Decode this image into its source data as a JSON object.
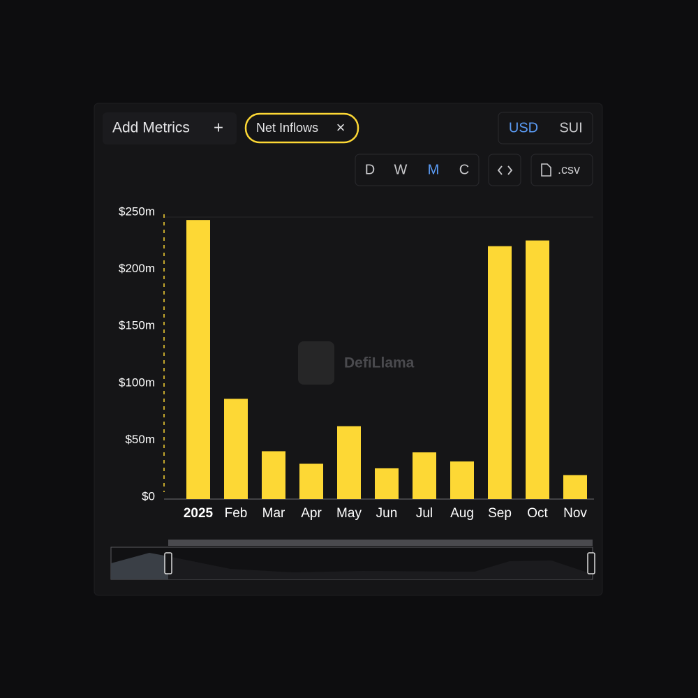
{
  "controls": {
    "add_metrics": "Add Metrics",
    "add_icon": "+",
    "metric_chip": "Net Inflows",
    "chip_close": "×",
    "currency": [
      "USD",
      "SUI"
    ],
    "currency_active": "USD",
    "periods": [
      "D",
      "W",
      "M",
      "C"
    ],
    "period_active": "M",
    "csv": ".csv"
  },
  "watermark": "DefiLlama",
  "chart_data": {
    "type": "bar",
    "categories": [
      "2025",
      "Feb",
      "Mar",
      "Apr",
      "May",
      "Jun",
      "Jul",
      "Aug",
      "Sep",
      "Oct",
      "Nov"
    ],
    "values": [
      245,
      88,
      42,
      31,
      64,
      27,
      41,
      33,
      222,
      227,
      21
    ],
    "color": "#fdd835",
    "ylim": [
      0,
      250
    ],
    "yticks": [
      {
        "value": 0,
        "label": "$0"
      },
      {
        "value": 50,
        "label": "$50m"
      },
      {
        "value": 100,
        "label": "$100m"
      },
      {
        "value": 150,
        "label": "$150m"
      },
      {
        "value": 200,
        "label": "$200m"
      },
      {
        "value": 250,
        "label": "$250m"
      }
    ],
    "grid": false
  }
}
